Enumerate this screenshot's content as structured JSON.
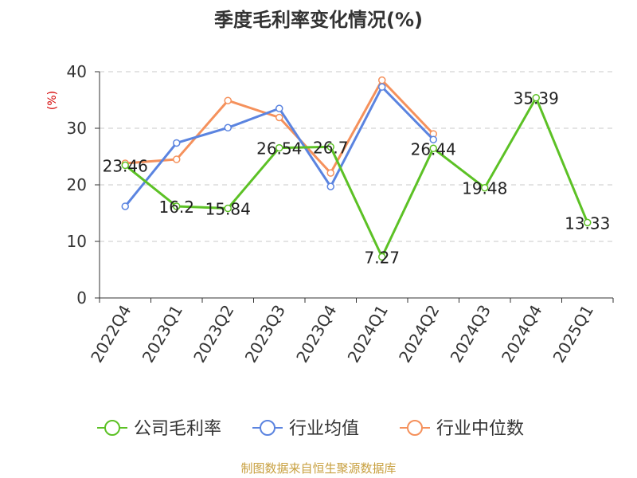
{
  "chart_data": {
    "type": "line",
    "title": "季度毛利率变化情况(%)",
    "ylabel": "(%)",
    "ylim": [
      0,
      40
    ],
    "yticks": [
      0,
      10,
      20,
      30,
      40
    ],
    "grid": true,
    "legend_position": "bottom",
    "categories": [
      "2022Q4",
      "2023Q1",
      "2023Q2",
      "2023Q3",
      "2023Q4",
      "2024Q1",
      "2024Q2",
      "2024Q3",
      "2024Q4",
      "2025Q1"
    ],
    "series": [
      {
        "name": "公司毛利率",
        "color": "#5cc125",
        "labeled": true,
        "values": [
          23.46,
          16.2,
          15.84,
          26.54,
          26.7,
          7.27,
          26.44,
          19.48,
          35.39,
          13.33
        ],
        "labels": [
          "23.46",
          "16.2",
          "15.84",
          "26.54",
          "26.7",
          "7.27",
          "26.44",
          "19.48",
          "35.39",
          "13.33"
        ]
      },
      {
        "name": "行业均值",
        "color": "#5b84e0",
        "labeled": false,
        "values": [
          16.2,
          27.4,
          30.1,
          33.5,
          19.7,
          37.3,
          28.0,
          null,
          null,
          null
        ]
      },
      {
        "name": "行业中位数",
        "color": "#f5915c",
        "labeled": false,
        "values": [
          23.8,
          24.5,
          34.9,
          31.9,
          22.1,
          38.5,
          29.0,
          null,
          null,
          null
        ]
      }
    ],
    "source": "制图数据来自恒生聚源数据库"
  }
}
